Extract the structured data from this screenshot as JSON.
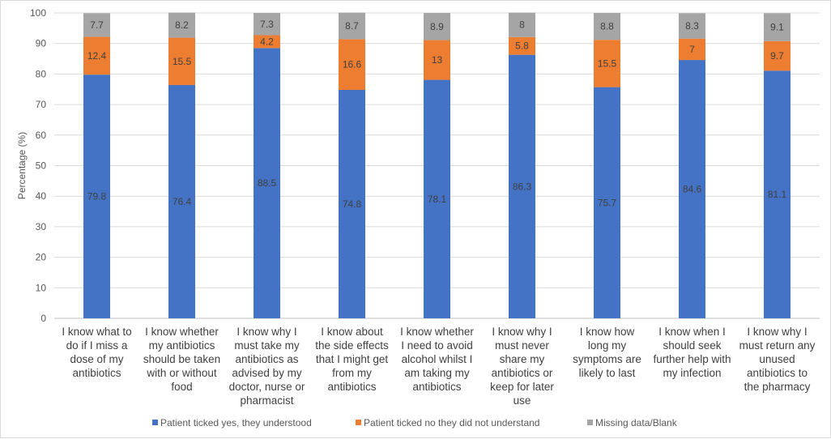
{
  "chart_data": {
    "type": "bar",
    "stacked": true,
    "title": "",
    "xlabel": "",
    "ylabel": "Percentage (%)",
    "ylim": [
      0,
      100
    ],
    "yticks": [
      0,
      10,
      20,
      30,
      40,
      50,
      60,
      70,
      80,
      90,
      100
    ],
    "grid": true,
    "legend_position": "bottom",
    "categories": [
      [
        "I know what to",
        "do if I miss a",
        "dose of my",
        "antibiotics"
      ],
      [
        "I know whether",
        "my antibiotics",
        "should be taken",
        "with or without",
        "food"
      ],
      [
        "I know why I",
        "must take my",
        "antibiotics as",
        "advised by my",
        "doctor, nurse or",
        "pharmacist"
      ],
      [
        "I know about",
        "the side effects",
        "that I might get",
        "from my",
        "antibiotics"
      ],
      [
        "I know whether",
        "I need to avoid",
        "alcohol whilst I",
        "am taking my",
        "antibiotics"
      ],
      [
        "I know why I",
        "must never",
        "share my",
        "antibiotics or",
        "keep for later",
        "use"
      ],
      [
        "I know how",
        "long my",
        "symptoms are",
        "likely to last"
      ],
      [
        "I know when I",
        "should seek",
        "further help with",
        "my infection"
      ],
      [
        "I know why I",
        "must return any",
        "unused",
        "antibiotics to",
        "the pharmacy"
      ]
    ],
    "series": [
      {
        "name": "Patient ticked yes, they understood",
        "color": "#4472c4",
        "values": [
          79.8,
          76.4,
          88.5,
          74.8,
          78.1,
          86.3,
          75.7,
          84.6,
          81.1
        ],
        "labels": [
          "79.8",
          "76.4",
          "88.5",
          "74.8",
          "78.1",
          "86.3",
          "75.7",
          "84.6",
          "81.1"
        ]
      },
      {
        "name": "Patient ticked no they did not understand",
        "color": "#ed7d31",
        "values": [
          12.4,
          15.5,
          4.2,
          16.6,
          13,
          5.8,
          15.5,
          7,
          9.7
        ],
        "labels": [
          "12.4",
          "15.5",
          "4.2",
          "16.6",
          "13",
          "5.8",
          "15.5",
          "7",
          "9.7"
        ]
      },
      {
        "name": "Missing data/Blank",
        "color": "#a5a5a5",
        "values": [
          7.7,
          8.2,
          7.3,
          8.7,
          8.9,
          8,
          8.8,
          8.3,
          9.1
        ],
        "labels": [
          "7.7",
          "8.2",
          "7.3",
          "8.7",
          "8.9",
          "8",
          "8.8",
          "8.3",
          "9.1"
        ]
      }
    ]
  }
}
